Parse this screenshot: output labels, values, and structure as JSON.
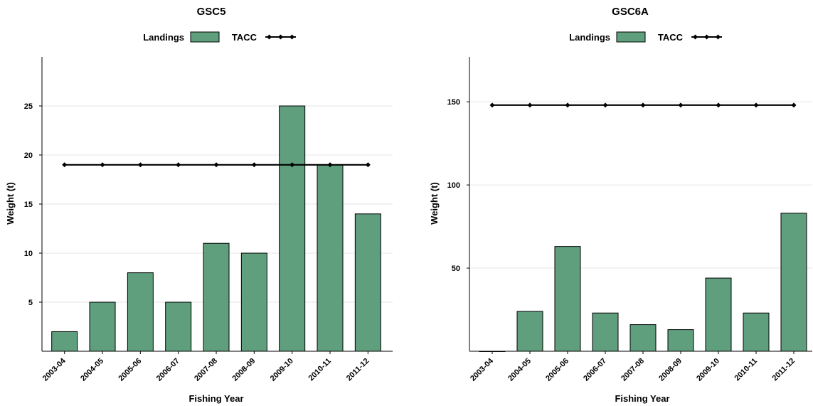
{
  "colors": {
    "landings": "#5f9f7e",
    "tacc": "#000000",
    "grid": "#e6e6e6"
  },
  "legend": {
    "landings_label": "Landings",
    "tacc_label": "TACC"
  },
  "chart_data": [
    {
      "type": "bar",
      "title": "GSC5",
      "xlabel": "Fishing Year",
      "ylabel": "Weight (t)",
      "categories": [
        "2003-04",
        "2004-05",
        "2005-06",
        "2006-07",
        "2007-08",
        "2008-09",
        "2009-10",
        "2010-11",
        "2011-12"
      ],
      "ylim": [
        0,
        30
      ],
      "yticks": [
        5,
        10,
        15,
        20,
        25
      ],
      "grid": true,
      "legend_position": "top-center",
      "series": [
        {
          "name": "Landings",
          "type": "bar",
          "values": [
            2,
            5,
            8,
            5,
            11,
            10,
            25,
            19,
            14
          ]
        },
        {
          "name": "TACC",
          "type": "line",
          "values": [
            19,
            19,
            19,
            19,
            19,
            19,
            19,
            19,
            19
          ]
        }
      ]
    },
    {
      "type": "bar",
      "title": "GSC6A",
      "xlabel": "Fishing Year",
      "ylabel": "Weight (t)",
      "categories": [
        "2003-04",
        "2004-05",
        "2005-06",
        "2006-07",
        "2007-08",
        "2008-09",
        "2009-10",
        "2010-11",
        "2011-12"
      ],
      "ylim": [
        0,
        177
      ],
      "yticks": [
        50,
        100,
        150
      ],
      "grid": true,
      "legend_position": "top-center",
      "series": [
        {
          "name": "Landings",
          "type": "bar",
          "values": [
            0,
            24,
            63,
            23,
            16,
            13,
            44,
            23,
            83
          ]
        },
        {
          "name": "TACC",
          "type": "line",
          "values": [
            148,
            148,
            148,
            148,
            148,
            148,
            148,
            148,
            148
          ]
        }
      ]
    }
  ]
}
